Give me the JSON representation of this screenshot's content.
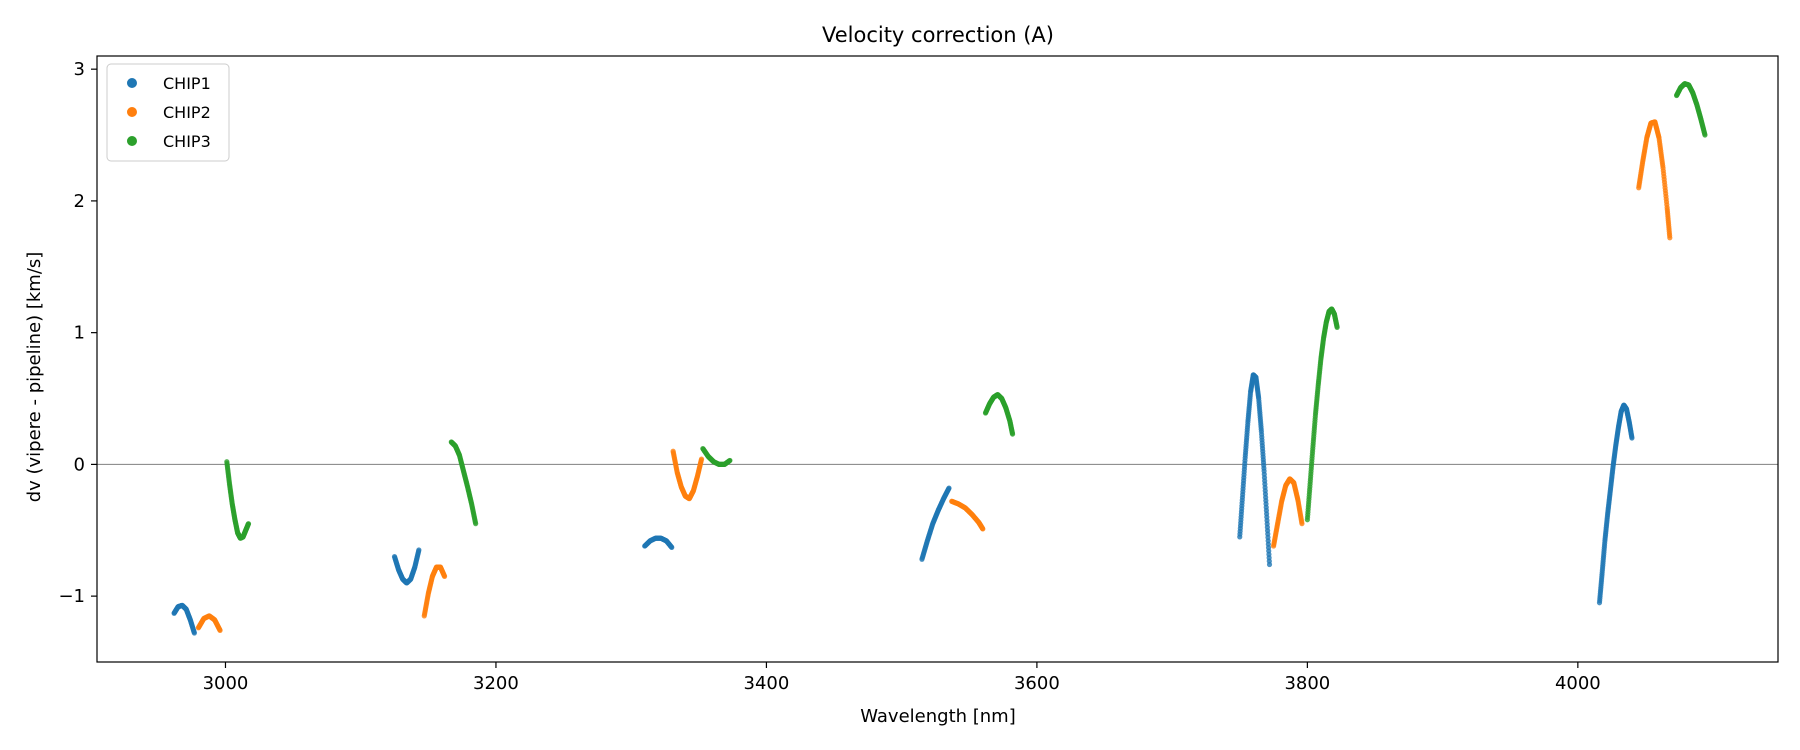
{
  "chart_data": {
    "type": "scatter",
    "title": "Velocity correction (A)",
    "xlabel": "Wavelength [nm]",
    "ylabel": "dv (vipere - pipeline) [km/s]",
    "xlim": [
      2905,
      4148
    ],
    "ylim": [
      -1.5,
      3.1
    ],
    "xticks": [
      3000,
      3200,
      3400,
      3600,
      3800,
      4000
    ],
    "yticks": [
      -1,
      0,
      1,
      2,
      3
    ],
    "ytick_labels": [
      "−1",
      "0",
      "1",
      "2",
      "3"
    ],
    "hline": 0,
    "legend_position": "upper-left",
    "series": [
      {
        "name": "CHIP1",
        "color": "#1f77b4",
        "segments": [
          {
            "x": [
              2962,
              2965,
              2968,
              2971,
              2974,
              2977
            ],
            "y": [
              -1.13,
              -1.08,
              -1.07,
              -1.1,
              -1.18,
              -1.28
            ]
          },
          {
            "x": [
              3125,
              3128,
              3131,
              3134,
              3137,
              3140,
              3143
            ],
            "y": [
              -0.7,
              -0.8,
              -0.87,
              -0.9,
              -0.87,
              -0.78,
              -0.65
            ]
          },
          {
            "x": [
              3310,
              3314,
              3318,
              3322,
              3326,
              3330
            ],
            "y": [
              -0.62,
              -0.58,
              -0.56,
              -0.56,
              -0.58,
              -0.63
            ]
          },
          {
            "x": [
              3515,
              3519,
              3523,
              3527,
              3531,
              3535
            ],
            "y": [
              -0.72,
              -0.58,
              -0.45,
              -0.35,
              -0.26,
              -0.18
            ]
          },
          {
            "x": [
              3750,
              3752,
              3754,
              3756,
              3758,
              3760,
              3762,
              3764,
              3766,
              3768,
              3770,
              3772
            ],
            "y": [
              -0.55,
              -0.25,
              0.05,
              0.32,
              0.55,
              0.68,
              0.66,
              0.5,
              0.25,
              -0.05,
              -0.4,
              -0.76
            ]
          },
          {
            "x": [
              4016,
              4018,
              4020,
              4022,
              4024,
              4026,
              4028,
              4030,
              4032,
              4034,
              4036,
              4038,
              4040
            ],
            "y": [
              -1.05,
              -0.82,
              -0.58,
              -0.38,
              -0.2,
              -0.02,
              0.14,
              0.28,
              0.4,
              0.45,
              0.42,
              0.32,
              0.2
            ]
          }
        ]
      },
      {
        "name": "CHIP2",
        "color": "#ff7f0e",
        "segments": [
          {
            "x": [
              2980,
              2984,
              2988,
              2992,
              2996
            ],
            "y": [
              -1.24,
              -1.17,
              -1.15,
              -1.18,
              -1.26
            ]
          },
          {
            "x": [
              3147,
              3150,
              3153,
              3156,
              3159,
              3162
            ],
            "y": [
              -1.15,
              -0.98,
              -0.85,
              -0.78,
              -0.78,
              -0.85
            ]
          },
          {
            "x": [
              3331,
              3334,
              3337,
              3340,
              3343,
              3346,
              3349,
              3352
            ],
            "y": [
              0.1,
              -0.06,
              -0.17,
              -0.24,
              -0.26,
              -0.2,
              -0.09,
              0.04
            ]
          },
          {
            "x": [
              3537,
              3542,
              3547,
              3552,
              3557,
              3560
            ],
            "y": [
              -0.28,
              -0.3,
              -0.33,
              -0.38,
              -0.44,
              -0.49
            ]
          },
          {
            "x": [
              3775,
              3778,
              3781,
              3784,
              3787,
              3790,
              3793,
              3796
            ],
            "y": [
              -0.62,
              -0.45,
              -0.28,
              -0.16,
              -0.11,
              -0.14,
              -0.27,
              -0.45
            ]
          },
          {
            "x": [
              4045,
              4048,
              4051,
              4054,
              4057,
              4060,
              4063,
              4066,
              4068
            ],
            "y": [
              2.1,
              2.3,
              2.48,
              2.59,
              2.6,
              2.48,
              2.25,
              1.95,
              1.72
            ]
          }
        ]
      },
      {
        "name": "CHIP3",
        "color": "#2ca02c",
        "segments": [
          {
            "x": [
              3001,
              3003,
              3005,
              3007,
              3009,
              3011,
              3013,
              3015,
              3017
            ],
            "y": [
              0.02,
              -0.15,
              -0.3,
              -0.42,
              -0.52,
              -0.56,
              -0.55,
              -0.5,
              -0.45
            ]
          },
          {
            "x": [
              3167,
              3170,
              3173,
              3176,
              3179,
              3182,
              3185
            ],
            "y": [
              0.17,
              0.14,
              0.07,
              -0.05,
              -0.17,
              -0.3,
              -0.45
            ]
          },
          {
            "x": [
              3353,
              3357,
              3361,
              3365,
              3369,
              3373
            ],
            "y": [
              0.12,
              0.06,
              0.02,
              0.0,
              0.0,
              0.03
            ]
          },
          {
            "x": [
              3562,
              3565,
              3568,
              3571,
              3574,
              3577,
              3580,
              3582
            ],
            "y": [
              0.39,
              0.46,
              0.51,
              0.53,
              0.5,
              0.43,
              0.33,
              0.23
            ]
          },
          {
            "x": [
              3800,
              3802,
              3804,
              3806,
              3808,
              3810,
              3812,
              3814,
              3816,
              3818,
              3820,
              3822
            ],
            "y": [
              -0.42,
              -0.15,
              0.12,
              0.38,
              0.6,
              0.8,
              0.96,
              1.08,
              1.16,
              1.18,
              1.14,
              1.04
            ]
          },
          {
            "x": [
              4073,
              4076,
              4079,
              4082,
              4085,
              4088,
              4091,
              4094
            ],
            "y": [
              2.8,
              2.86,
              2.89,
              2.88,
              2.82,
              2.73,
              2.62,
              2.5
            ]
          }
        ]
      }
    ]
  }
}
